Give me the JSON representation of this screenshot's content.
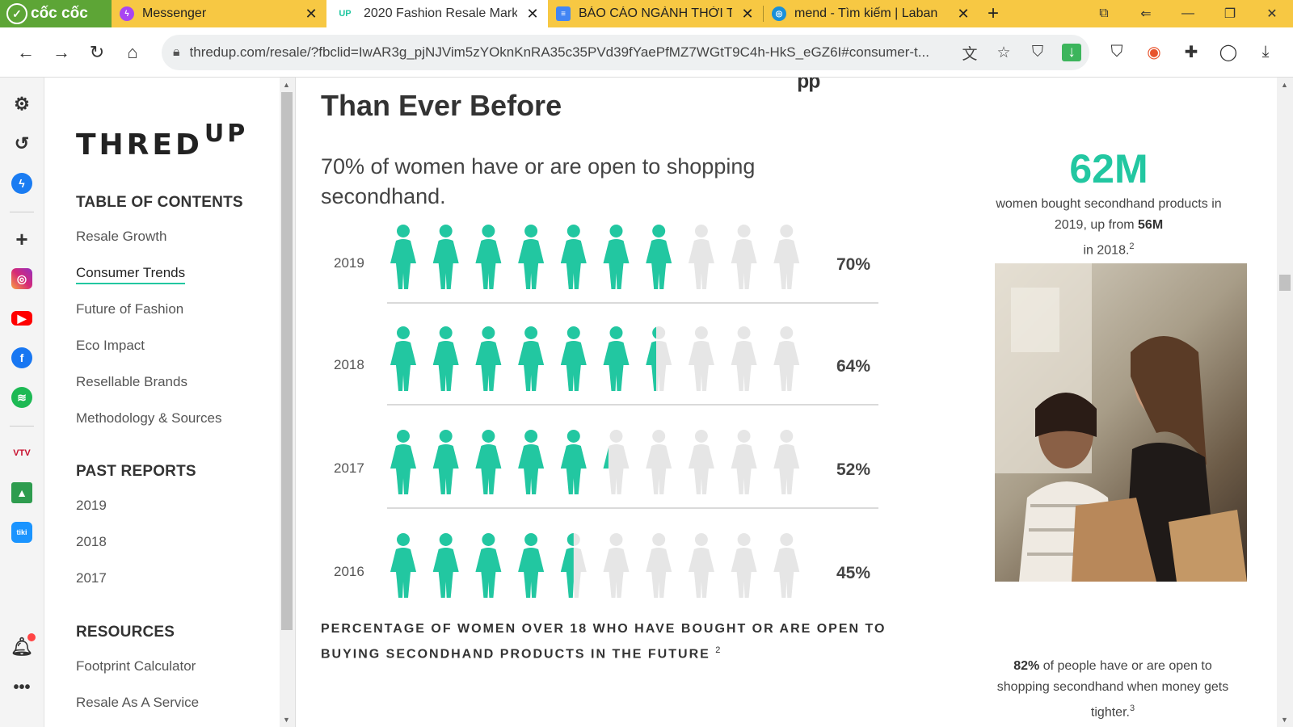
{
  "browser": {
    "brand": "cốc cốc",
    "tabs": [
      {
        "title": "Messenger",
        "icon": "messenger-icon",
        "color": "#a845f2"
      },
      {
        "title": "2020 Fashion Resale Mark",
        "icon": "thredup-favicon",
        "color": "#22c7a1",
        "icon_text": "UP"
      },
      {
        "title": "BÁO CÁO NGÀNH THỜI T",
        "icon": "google-docs-icon",
        "color": "#4285f4"
      },
      {
        "title": "mend - Tìm kiếm | Laban",
        "icon": "compass-icon",
        "color": "#1a90d9"
      }
    ],
    "url": "thredup.com/resale/?fbclid=IwAR3g_pjNJVim5zYOknKnRA35c35PVd39fYaePfMZ7WGtT9C4h-HkS_eGZ6I#consumer-t..."
  },
  "toc": {
    "logo_main": "THRED",
    "logo_sup": "UP",
    "heading_contents": "TABLE OF CONTENTS",
    "items": [
      "Resale Growth",
      "Consumer Trends",
      "Future of Fashion",
      "Eco Impact",
      "Resellable Brands",
      "Methodology & Sources"
    ],
    "heading_past": "PAST REPORTS",
    "past": [
      "2019",
      "2018",
      "2017"
    ],
    "heading_resources": "RESOURCES",
    "resources": [
      "Footprint Calculator",
      "Resale As A Service"
    ]
  },
  "main": {
    "heading": "Than Ever Before",
    "lead": "70% of women have or are open to shopping secondhand.",
    "rows": [
      {
        "year": "2019",
        "value": 70,
        "label": "70%"
      },
      {
        "year": "2018",
        "value": 64,
        "label": "64%"
      },
      {
        "year": "2017",
        "value": 52,
        "label": "52%"
      },
      {
        "year": "2016",
        "value": 45,
        "label": "45%"
      }
    ],
    "caption": "PERCENTAGE OF WOMEN OVER 18 WHO HAVE BOUGHT OR ARE OPEN TO BUYING SECONDHAND PRODUCTS IN THE FUTURE",
    "caption_ref": "2",
    "stat_big": "62M",
    "stat_text_a": "women bought secondhand products in 2019, up from",
    "stat_text_bold": "56M",
    "stat_text_b": "in 2018.",
    "stat_ref": "2",
    "stat2_bold": "82%",
    "stat2_text": "of people have or are open to shopping secondhand when money gets tighter.",
    "stat2_ref": "3"
  },
  "colors": {
    "accent": "#22c7a1",
    "inactive": "#e6e6e6"
  }
}
